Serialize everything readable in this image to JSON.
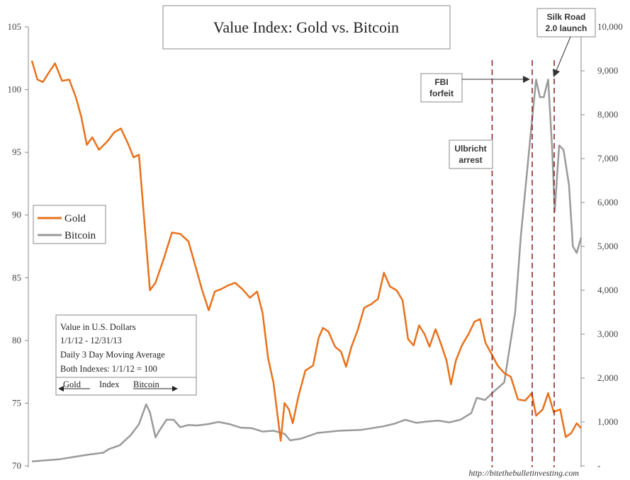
{
  "chart_data": {
    "type": "line",
    "title": "Value Index: Gold vs. Bitcoin",
    "left_axis": {
      "min": 70,
      "max": 105,
      "ticks": [
        "70",
        "75",
        "80",
        "85",
        "90",
        "95",
        "100",
        "105"
      ]
    },
    "right_axis": {
      "min": 0,
      "max": 10000,
      "ticks": [
        "-",
        "1,000",
        "2,000",
        "3,000",
        "4,000",
        "5,000",
        "6,000",
        "7,000",
        "8,000",
        "9,000",
        "10,000"
      ]
    },
    "x_range": [
      0,
      1
    ],
    "grid": false,
    "legend_placement": "left-middle",
    "series": [
      {
        "name": "Gold",
        "color": "#e8711c",
        "axis": "left",
        "points": [
          [
            0.0,
            102.3
          ],
          [
            0.01,
            100.8
          ],
          [
            0.02,
            100.6
          ],
          [
            0.03,
            101.3
          ],
          [
            0.042,
            102.1
          ],
          [
            0.055,
            100.7
          ],
          [
            0.068,
            100.8
          ],
          [
            0.08,
            99.4
          ],
          [
            0.09,
            97.8
          ],
          [
            0.1,
            95.6
          ],
          [
            0.11,
            96.2
          ],
          [
            0.122,
            95.2
          ],
          [
            0.138,
            95.9
          ],
          [
            0.15,
            96.6
          ],
          [
            0.162,
            96.9
          ],
          [
            0.175,
            95.7
          ],
          [
            0.185,
            94.6
          ],
          [
            0.195,
            94.8
          ],
          [
            0.215,
            84.0
          ],
          [
            0.225,
            84.6
          ],
          [
            0.24,
            86.5
          ],
          [
            0.255,
            88.6
          ],
          [
            0.27,
            88.5
          ],
          [
            0.285,
            87.9
          ],
          [
            0.298,
            85.9
          ],
          [
            0.31,
            84.0
          ],
          [
            0.322,
            82.4
          ],
          [
            0.333,
            83.9
          ],
          [
            0.345,
            84.1
          ],
          [
            0.358,
            84.4
          ],
          [
            0.37,
            84.6
          ],
          [
            0.383,
            84.1
          ],
          [
            0.397,
            83.4
          ],
          [
            0.41,
            83.9
          ],
          [
            0.42,
            82.2
          ],
          [
            0.43,
            78.6
          ],
          [
            0.44,
            76.6
          ],
          [
            0.453,
            72.0
          ],
          [
            0.46,
            75.0
          ],
          [
            0.468,
            74.5
          ],
          [
            0.475,
            73.4
          ],
          [
            0.485,
            75.5
          ],
          [
            0.498,
            77.6
          ],
          [
            0.512,
            78.0
          ],
          [
            0.522,
            80.2
          ],
          [
            0.53,
            81.0
          ],
          [
            0.54,
            80.7
          ],
          [
            0.552,
            79.5
          ],
          [
            0.563,
            79.1
          ],
          [
            0.572,
            77.9
          ],
          [
            0.582,
            79.5
          ],
          [
            0.593,
            80.8
          ],
          [
            0.605,
            82.6
          ],
          [
            0.618,
            82.9
          ],
          [
            0.63,
            83.3
          ],
          [
            0.641,
            85.4
          ],
          [
            0.652,
            84.3
          ],
          [
            0.664,
            84.0
          ],
          [
            0.675,
            83.2
          ],
          [
            0.685,
            80.1
          ],
          [
            0.695,
            79.6
          ],
          [
            0.705,
            81.2
          ],
          [
            0.715,
            80.5
          ],
          [
            0.724,
            79.5
          ],
          [
            0.735,
            80.9
          ],
          [
            0.745,
            79.7
          ],
          [
            0.755,
            78.4
          ],
          [
            0.763,
            76.5
          ],
          [
            0.772,
            78.4
          ],
          [
            0.783,
            79.6
          ],
          [
            0.795,
            80.5
          ],
          [
            0.806,
            81.5
          ],
          [
            0.816,
            81.7
          ],
          [
            0.826,
            79.8
          ],
          [
            0.836,
            79.0
          ],
          [
            0.848,
            78.0
          ],
          [
            0.86,
            77.4
          ],
          [
            0.872,
            77.1
          ],
          [
            0.885,
            75.3
          ],
          [
            0.898,
            75.2
          ],
          [
            0.91,
            75.8
          ],
          [
            0.918,
            74.0
          ],
          [
            0.93,
            74.5
          ],
          [
            0.94,
            75.8
          ],
          [
            0.95,
            74.3
          ],
          [
            0.962,
            74.5
          ],
          [
            0.972,
            72.3
          ],
          [
            0.982,
            72.6
          ],
          [
            0.992,
            73.4
          ],
          [
            1.0,
            73.0
          ]
        ]
      },
      {
        "name": "Bitcoin",
        "color": "#9a9a9a",
        "axis": "right",
        "points": [
          [
            0.0,
            100
          ],
          [
            0.05,
            150
          ],
          [
            0.1,
            250
          ],
          [
            0.13,
            300
          ],
          [
            0.14,
            380
          ],
          [
            0.16,
            470
          ],
          [
            0.18,
            700
          ],
          [
            0.195,
            950
          ],
          [
            0.208,
            1400
          ],
          [
            0.215,
            1220
          ],
          [
            0.225,
            650
          ],
          [
            0.232,
            800
          ],
          [
            0.245,
            1050
          ],
          [
            0.258,
            1050
          ],
          [
            0.27,
            880
          ],
          [
            0.285,
            930
          ],
          [
            0.3,
            920
          ],
          [
            0.32,
            950
          ],
          [
            0.34,
            1000
          ],
          [
            0.36,
            950
          ],
          [
            0.38,
            870
          ],
          [
            0.4,
            860
          ],
          [
            0.42,
            780
          ],
          [
            0.44,
            800
          ],
          [
            0.46,
            730
          ],
          [
            0.47,
            580
          ],
          [
            0.49,
            620
          ],
          [
            0.52,
            750
          ],
          [
            0.56,
            800
          ],
          [
            0.6,
            820
          ],
          [
            0.64,
            900
          ],
          [
            0.66,
            960
          ],
          [
            0.68,
            1050
          ],
          [
            0.7,
            980
          ],
          [
            0.72,
            1010
          ],
          [
            0.74,
            1030
          ],
          [
            0.76,
            990
          ],
          [
            0.78,
            1050
          ],
          [
            0.8,
            1200
          ],
          [
            0.81,
            1550
          ],
          [
            0.825,
            1500
          ],
          [
            0.84,
            1680
          ],
          [
            0.86,
            1900
          ],
          [
            0.88,
            3500
          ],
          [
            0.89,
            5200
          ],
          [
            0.9,
            6500
          ],
          [
            0.91,
            7800
          ],
          [
            0.918,
            8800
          ],
          [
            0.925,
            8400
          ],
          [
            0.932,
            8400
          ],
          [
            0.94,
            8800
          ],
          [
            0.947,
            7300
          ],
          [
            0.952,
            5800
          ],
          [
            0.96,
            7300
          ],
          [
            0.968,
            7200
          ],
          [
            0.978,
            6400
          ],
          [
            0.985,
            5000
          ],
          [
            0.992,
            4850
          ],
          [
            1.0,
            5200
          ]
        ]
      }
    ],
    "markers": [
      {
        "label": "Ulbricht arrest",
        "x": 0.838
      },
      {
        "label": "FBI forfeit",
        "x": 0.911
      },
      {
        "label": "Silk Road 2.0 launch",
        "x": 0.951
      }
    ]
  },
  "annotations": {
    "ulbricht": [
      "Ulbricht",
      "arrest"
    ],
    "fbi": [
      "FBI",
      "forfeit"
    ],
    "silkroad": [
      "Silk Road",
      "2.0 launch"
    ]
  },
  "legend": {
    "gold": "Gold",
    "bitcoin": "Bitcoin"
  },
  "info_box": {
    "lines": [
      "Value in U.S. Dollars",
      "1/1/12 - 12/31/13",
      "Daily 3 Day Moving Average",
      "Both Indexes: 1/1/12 = 100"
    ],
    "footer_gold": "Gold",
    "footer_index": "Index",
    "footer_bitcoin": "Bitcoin"
  },
  "source": "http://bitethebulletinvesting.com"
}
